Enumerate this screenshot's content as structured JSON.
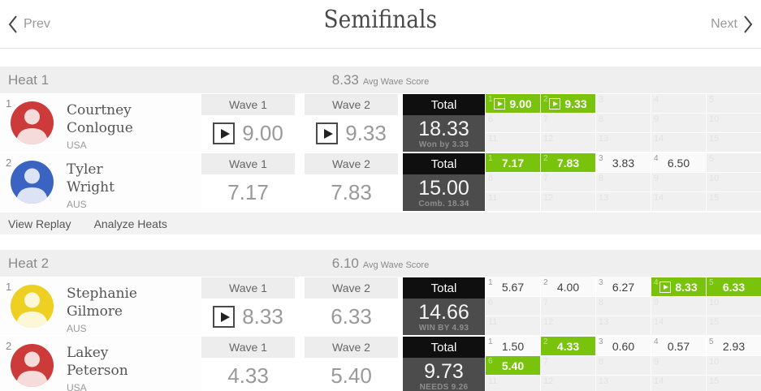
{
  "nav": {
    "prev": "Prev",
    "next": "Next",
    "title": "Semifinals"
  },
  "labels": {
    "wave1": "Wave 1",
    "wave2": "Wave 2",
    "total": "Total",
    "avg_wave_score": "Avg Wave Score"
  },
  "colors": {
    "score_green": "#79c30d",
    "total_header_bg": "#0f0f0f",
    "total_body_bg": "#4c4c4c",
    "heat_band_bg": "#efefef"
  },
  "grid": {
    "slot_count": 15
  },
  "heats": [
    {
      "name": "Heat 1",
      "avg": "8.33",
      "links": [
        "View Replay",
        "Analyze Heats"
      ],
      "athletes": [
        {
          "rank": "1",
          "first_name": "Courtney",
          "last_name": "Conlogue",
          "country": "USA",
          "avatar_color": "#cc3a3a",
          "wave1": {
            "score": "9.00",
            "play": true
          },
          "wave2": {
            "score": "9.33",
            "play": true
          },
          "total": {
            "score": "18.33",
            "status": "Won by 3.33"
          },
          "waves": [
            {
              "n": "1",
              "score": "9.00",
              "best": true,
              "play": true
            },
            {
              "n": "2",
              "score": "9.33",
              "best": true,
              "play": true
            }
          ]
        },
        {
          "rank": "2",
          "first_name": "Tyler",
          "last_name": "Wright",
          "country": "AUS",
          "avatar_color": "#3a63c2",
          "wave1": {
            "score": "7.17",
            "play": false
          },
          "wave2": {
            "score": "7.83",
            "play": false
          },
          "total": {
            "score": "15.00",
            "status": "Comb. 18.34"
          },
          "waves": [
            {
              "n": "1",
              "score": "7.17",
              "best": true,
              "play": false
            },
            {
              "n": "2",
              "score": "7.83",
              "best": true,
              "play": false
            },
            {
              "n": "3",
              "score": "3.83",
              "best": false,
              "play": false
            },
            {
              "n": "4",
              "score": "6.50",
              "best": false,
              "play": false
            }
          ]
        }
      ]
    },
    {
      "name": "Heat 2",
      "avg": "6.10",
      "links": null,
      "athletes": [
        {
          "rank": "1",
          "first_name": "Stephanie",
          "last_name": "Gilmore",
          "country": "AUS",
          "avatar_color": "#eed022",
          "wave1": {
            "score": "8.33",
            "play": true
          },
          "wave2": {
            "score": "6.33",
            "play": false
          },
          "total": {
            "score": "14.66",
            "status": "WIN BY 4.93"
          },
          "waves": [
            {
              "n": "1",
              "score": "5.67",
              "best": false,
              "play": false
            },
            {
              "n": "2",
              "score": "4.00",
              "best": false,
              "play": false
            },
            {
              "n": "3",
              "score": "6.27",
              "best": false,
              "play": false
            },
            {
              "n": "4",
              "score": "8.33",
              "best": true,
              "play": true
            },
            {
              "n": "5",
              "score": "6.33",
              "best": true,
              "play": false
            }
          ]
        },
        {
          "rank": "2",
          "first_name": "Lakey",
          "last_name": "Peterson",
          "country": "USA",
          "avatar_color": "#cc3a3a",
          "wave1": {
            "score": "4.33",
            "play": false
          },
          "wave2": {
            "score": "5.40",
            "play": false
          },
          "total": {
            "score": "9.73",
            "status": "NEEDS 9.26"
          },
          "waves": [
            {
              "n": "1",
              "score": "1.50",
              "best": false,
              "play": false
            },
            {
              "n": "2",
              "score": "4.33",
              "best": true,
              "play": false
            },
            {
              "n": "3",
              "score": "0.60",
              "best": false,
              "play": false
            },
            {
              "n": "4",
              "score": "0.57",
              "best": false,
              "play": false
            },
            {
              "n": "5",
              "score": "2.93",
              "best": false,
              "play": false
            },
            {
              "n": "6",
              "score": "5.40",
              "best": true,
              "play": false
            }
          ]
        }
      ]
    }
  ]
}
